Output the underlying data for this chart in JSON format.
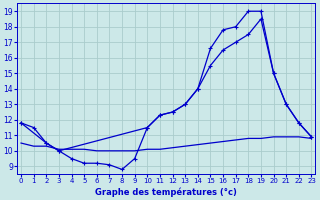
{
  "xlabel": "Graphe des températures (°c)",
  "bg_color": "#cce8e8",
  "grid_color": "#aacccc",
  "line_color": "#0000cc",
  "x_ticks": [
    0,
    1,
    2,
    3,
    4,
    5,
    6,
    7,
    8,
    9,
    10,
    11,
    12,
    13,
    14,
    15,
    16,
    17,
    18,
    19,
    20,
    21,
    22,
    23
  ],
  "y_ticks": [
    9,
    10,
    11,
    12,
    13,
    14,
    15,
    16,
    17,
    18,
    19
  ],
  "xlim": [
    -0.3,
    23.3
  ],
  "ylim": [
    8.5,
    19.5
  ],
  "line1": {
    "x": [
      0,
      1,
      2,
      3,
      4,
      5,
      6,
      7,
      8,
      9,
      10,
      11,
      12,
      13,
      14,
      15,
      16,
      17,
      18,
      19,
      20,
      21,
      22,
      23
    ],
    "y": [
      11.8,
      11.5,
      10.5,
      10.0,
      9.5,
      9.2,
      9.2,
      9.1,
      8.8,
      9.5,
      11.5,
      12.3,
      12.5,
      13.0,
      14.0,
      16.6,
      17.8,
      18.0,
      19.0,
      19.0,
      15.0,
      13.0,
      11.8,
      10.9
    ]
  },
  "line2": {
    "x": [
      0,
      2,
      3,
      10,
      11,
      12,
      13,
      14,
      15,
      16,
      17,
      18,
      19,
      20,
      21,
      22,
      23
    ],
    "y": [
      11.8,
      10.5,
      10.0,
      11.5,
      12.3,
      12.5,
      13.0,
      14.0,
      15.5,
      16.5,
      17.0,
      17.5,
      18.5,
      15.0,
      13.0,
      11.8,
      10.9
    ]
  },
  "line3": {
    "x": [
      0,
      1,
      2,
      3,
      4,
      5,
      6,
      7,
      8,
      9,
      10,
      11,
      12,
      13,
      14,
      15,
      16,
      17,
      18,
      19,
      20,
      21,
      22,
      23
    ],
    "y": [
      10.5,
      10.3,
      10.3,
      10.1,
      10.1,
      10.1,
      10.0,
      10.0,
      10.0,
      10.0,
      10.1,
      10.1,
      10.2,
      10.3,
      10.4,
      10.5,
      10.6,
      10.7,
      10.8,
      10.8,
      10.9,
      10.9,
      10.9,
      10.8
    ]
  }
}
